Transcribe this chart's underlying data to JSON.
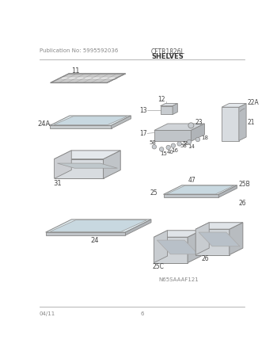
{
  "title_left": "Publication No: 5995592036",
  "title_center": "CFTR1826L",
  "subtitle_center": "SHELVES",
  "footer_left": "04/11",
  "footer_center": "6",
  "image_code": "N65SAAAF121",
  "background": "#ffffff",
  "lc": "#888888",
  "tc": "#444444",
  "part_lc": "#999999",
  "part_fill_light": "#f0f0f0",
  "part_fill_mid": "#e0e0e0",
  "part_fill_dark": "#cccccc",
  "part_fill_darker": "#b8b8b8"
}
